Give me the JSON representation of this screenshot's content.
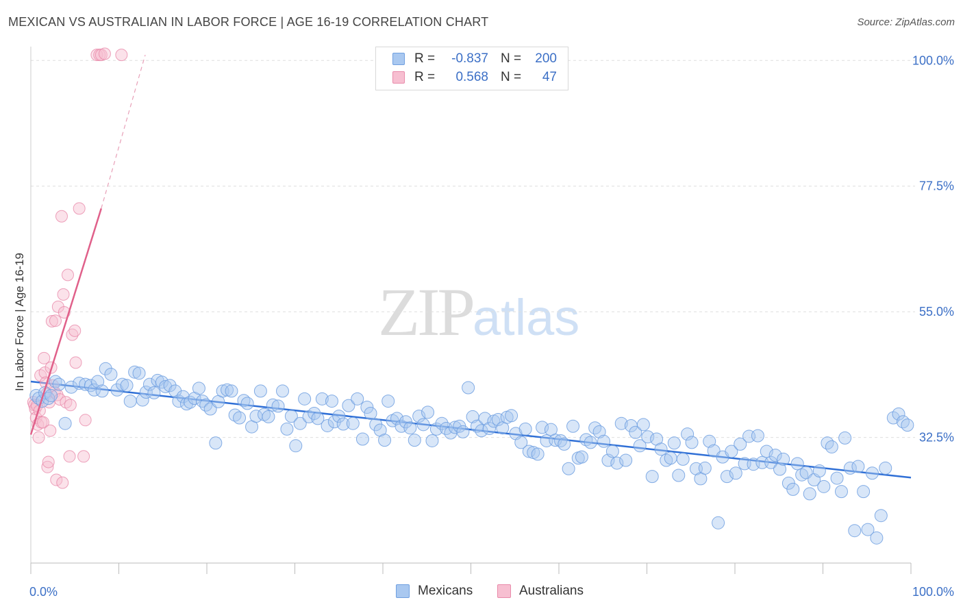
{
  "header": {
    "title": "MEXICAN VS AUSTRALIAN IN LABOR FORCE | AGE 16-19 CORRELATION CHART",
    "source": "Source: ZipAtlas.com"
  },
  "watermark": {
    "zip": "ZIP",
    "atlas": "atlas"
  },
  "legend": {
    "rows": [
      {
        "r_label": "R =",
        "r_value": "-0.837",
        "n_label": "N =",
        "n_value": "200",
        "color": "#a9c8f0",
        "stroke": "#6f9fe0"
      },
      {
        "r_label": "R =",
        "r_value": "0.568",
        "n_label": "N =",
        "n_value": "47",
        "color": "#f7bfd1",
        "stroke": "#e98aaa"
      }
    ]
  },
  "bottom_legend": {
    "items": [
      {
        "label": "Mexicans",
        "color": "#a9c8f0",
        "stroke": "#6f9fe0"
      },
      {
        "label": "Australians",
        "color": "#f7bfd1",
        "stroke": "#e98aaa"
      }
    ]
  },
  "chart_data": {
    "type": "scatter",
    "title": "MEXICAN VS AUSTRALIAN IN LABOR FORCE | AGE 16-19 CORRELATION CHART",
    "xlabel": "",
    "ylabel": "In Labor Force | Age 16-19",
    "xlim": [
      0,
      100
    ],
    "ylim": [
      10,
      102
    ],
    "x_tick_labels": [
      "0.0%",
      "100.0%"
    ],
    "y_ticks": [
      32.5,
      55.0,
      77.5,
      100.0
    ],
    "y_tick_labels": [
      "32.5%",
      "55.0%",
      "77.5%",
      "100.0%"
    ],
    "grid": true,
    "series": [
      {
        "name": "Mexicans",
        "color": "#6f9fe0",
        "fill": "#a9c8f0",
        "trend": {
          "x": [
            0,
            100
          ],
          "y": [
            42.5,
            25.3
          ],
          "style": "solid"
        },
        "points": [
          [
            0.6,
            40
          ],
          [
            0.9,
            39.5
          ],
          [
            1.3,
            39
          ],
          [
            1.6,
            40.5
          ],
          [
            2,
            39.5
          ],
          [
            2.3,
            40
          ],
          [
            2.8,
            42.5
          ],
          [
            3.2,
            42
          ],
          [
            3.9,
            35
          ],
          [
            4.6,
            41.5
          ],
          [
            5.5,
            42.2
          ],
          [
            6.2,
            42
          ],
          [
            6.8,
            41.8
          ],
          [
            7.2,
            41
          ],
          [
            7.6,
            42.5
          ],
          [
            8.1,
            40.8
          ],
          [
            8.5,
            44.8
          ],
          [
            9.1,
            43.8
          ],
          [
            9.8,
            41
          ],
          [
            10.4,
            42
          ],
          [
            10.9,
            41.8
          ],
          [
            11.3,
            39
          ],
          [
            11.8,
            44.2
          ],
          [
            12.3,
            44
          ],
          [
            12.7,
            39.2
          ],
          [
            13.1,
            40.6
          ],
          [
            13.5,
            42
          ],
          [
            14,
            40.5
          ],
          [
            14.4,
            42.7
          ],
          [
            14.9,
            42.4
          ],
          [
            15.3,
            41.6
          ],
          [
            15.8,
            41.8
          ],
          [
            16.4,
            40.8
          ],
          [
            16.8,
            39
          ],
          [
            17.3,
            39.8
          ],
          [
            17.7,
            38.5
          ],
          [
            18.1,
            38.8
          ],
          [
            18.6,
            39.5
          ],
          [
            19.1,
            41.3
          ],
          [
            19.5,
            39
          ],
          [
            19.9,
            38.3
          ],
          [
            20.4,
            37.6
          ],
          [
            21,
            31.5
          ],
          [
            21.3,
            38.9
          ],
          [
            21.8,
            40.8
          ],
          [
            22.3,
            41
          ],
          [
            22.8,
            40.8
          ],
          [
            23.2,
            36.5
          ],
          [
            23.7,
            36
          ],
          [
            24.2,
            39.1
          ],
          [
            24.6,
            38.6
          ],
          [
            25.1,
            34.4
          ],
          [
            25.6,
            36.3
          ],
          [
            26.1,
            40.8
          ],
          [
            26.5,
            36.6
          ],
          [
            27,
            36.2
          ],
          [
            27.5,
            38.3
          ],
          [
            28.1,
            38.1
          ],
          [
            28.6,
            40.8
          ],
          [
            29.1,
            34
          ],
          [
            29.6,
            36.3
          ],
          [
            30.1,
            31
          ],
          [
            30.6,
            35
          ],
          [
            31.1,
            39.4
          ],
          [
            31.6,
            36.2
          ],
          [
            32.2,
            36.8
          ],
          [
            32.6,
            35.9
          ],
          [
            33.1,
            39.4
          ],
          [
            33.7,
            34.6
          ],
          [
            34.2,
            39
          ],
          [
            34.5,
            35.3
          ],
          [
            35,
            36.3
          ],
          [
            35.5,
            34.9
          ],
          [
            36.1,
            38.2
          ],
          [
            36.6,
            35
          ],
          [
            37.1,
            39.4
          ],
          [
            37.7,
            32.2
          ],
          [
            38.2,
            37.9
          ],
          [
            38.6,
            36.8
          ],
          [
            39.2,
            34.8
          ],
          [
            39.7,
            33.8
          ],
          [
            40.2,
            32
          ],
          [
            40.6,
            39
          ],
          [
            41.1,
            35.5
          ],
          [
            41.6,
            35.9
          ],
          [
            42.1,
            34.5
          ],
          [
            42.6,
            35.3
          ],
          [
            43.1,
            34.2
          ],
          [
            43.6,
            32
          ],
          [
            44.1,
            36.3
          ],
          [
            44.6,
            34.8
          ],
          [
            45.1,
            37
          ],
          [
            45.6,
            31.9
          ],
          [
            46.1,
            34
          ],
          [
            46.7,
            35
          ],
          [
            47.2,
            34.1
          ],
          [
            47.7,
            33.3
          ],
          [
            48.2,
            34.3
          ],
          [
            48.7,
            34.5
          ],
          [
            49.1,
            33.5
          ],
          [
            49.7,
            41.4
          ],
          [
            50.2,
            36.2
          ],
          [
            50.7,
            34.5
          ],
          [
            51.2,
            33.7
          ],
          [
            51.6,
            35.9
          ],
          [
            52.1,
            34.1
          ],
          [
            52.6,
            35.4
          ],
          [
            53.1,
            35.7
          ],
          [
            53.6,
            34.2
          ],
          [
            54.1,
            36.1
          ],
          [
            54.6,
            36.4
          ],
          [
            55.1,
            33.2
          ],
          [
            55.7,
            31.6
          ],
          [
            56.2,
            34
          ],
          [
            56.6,
            30
          ],
          [
            57.1,
            29.8
          ],
          [
            57.6,
            29.5
          ],
          [
            58.1,
            34.3
          ],
          [
            58.6,
            31.9
          ],
          [
            59.1,
            33.9
          ],
          [
            59.6,
            32
          ],
          [
            60.2,
            31.9
          ],
          [
            60.6,
            31.3
          ],
          [
            61.1,
            26.9
          ],
          [
            61.6,
            34.5
          ],
          [
            62.2,
            28.8
          ],
          [
            62.6,
            29
          ],
          [
            63.1,
            32.1
          ],
          [
            63.6,
            31.6
          ],
          [
            64.1,
            34.2
          ],
          [
            64.6,
            33.5
          ],
          [
            65.1,
            31.8
          ],
          [
            65.6,
            28.4
          ],
          [
            66.1,
            30
          ],
          [
            66.6,
            27.9
          ],
          [
            67.1,
            35
          ],
          [
            67.6,
            28.4
          ],
          [
            68.2,
            34.6
          ],
          [
            68.7,
            33.4
          ],
          [
            69.2,
            31
          ],
          [
            69.6,
            34.8
          ],
          [
            70.1,
            32.6
          ],
          [
            70.6,
            25.5
          ],
          [
            71.1,
            32.2
          ],
          [
            71.6,
            30.4
          ],
          [
            72.2,
            28.4
          ],
          [
            72.7,
            28.8
          ],
          [
            73.1,
            31.5
          ],
          [
            73.6,
            25.7
          ],
          [
            74.1,
            28.6
          ],
          [
            74.6,
            33.1
          ],
          [
            75.1,
            31.6
          ],
          [
            75.6,
            26.9
          ],
          [
            76.1,
            25.1
          ],
          [
            76.6,
            27
          ],
          [
            77.1,
            31.8
          ],
          [
            77.6,
            30.1
          ],
          [
            78.1,
            17.2
          ],
          [
            78.6,
            29
          ],
          [
            79.1,
            25.5
          ],
          [
            79.6,
            30
          ],
          [
            80.1,
            26.1
          ],
          [
            80.6,
            31.3
          ],
          [
            81.1,
            27.8
          ],
          [
            81.6,
            32.7
          ],
          [
            82.1,
            27.7
          ],
          [
            82.6,
            32.8
          ],
          [
            83.1,
            28
          ],
          [
            83.6,
            30
          ],
          [
            84.1,
            28
          ],
          [
            84.6,
            29.3
          ],
          [
            85.1,
            26.8
          ],
          [
            85.5,
            28.6
          ],
          [
            86.1,
            24.3
          ],
          [
            86.6,
            23.2
          ],
          [
            87.1,
            27.8
          ],
          [
            87.6,
            25.8
          ],
          [
            88.1,
            26.2
          ],
          [
            88.5,
            22.4
          ],
          [
            89,
            24.9
          ],
          [
            89.6,
            26.5
          ],
          [
            90.1,
            23.7
          ],
          [
            90.5,
            31.5
          ],
          [
            91,
            30.8
          ],
          [
            91.6,
            25.2
          ],
          [
            92.1,
            22.8
          ],
          [
            92.5,
            32.4
          ],
          [
            93.1,
            27
          ],
          [
            93.6,
            15.8
          ],
          [
            94,
            27.3
          ],
          [
            94.6,
            22.8
          ],
          [
            95.1,
            16
          ],
          [
            95.6,
            26.1
          ],
          [
            96.1,
            14.5
          ],
          [
            96.6,
            18.5
          ],
          [
            97.1,
            27
          ],
          [
            98,
            36
          ],
          [
            98.6,
            36.7
          ],
          [
            99.1,
            35.3
          ],
          [
            99.6,
            34.7
          ]
        ]
      },
      {
        "name": "Australians",
        "color": "#e98aaa",
        "fill": "#f7bfd1",
        "trend": {
          "x": [
            0,
            8
          ],
          "y": [
            33,
            73.5
          ],
          "style": "solid",
          "extension": {
            "x": [
              8,
              13
            ],
            "y": [
              73.5,
              101
            ]
          }
        },
        "points": [
          [
            0.3,
            38.8
          ],
          [
            0.4,
            38.3
          ],
          [
            0.5,
            37.6
          ],
          [
            0.6,
            36
          ],
          [
            0.7,
            38.2
          ],
          [
            0.8,
            34.8
          ],
          [
            0.9,
            32.5
          ],
          [
            1,
            37.3
          ],
          [
            1.1,
            43.6
          ],
          [
            1.2,
            35.2
          ],
          [
            1.4,
            35.2
          ],
          [
            1.5,
            46.7
          ],
          [
            1.6,
            44.1
          ],
          [
            1.7,
            42.3
          ],
          [
            1.8,
            40.3
          ],
          [
            1.9,
            27.2
          ],
          [
            2,
            28.1
          ],
          [
            2.1,
            38.8
          ],
          [
            2.2,
            33.7
          ],
          [
            2.3,
            45
          ],
          [
            2.4,
            53.3
          ],
          [
            2.5,
            41.8
          ],
          [
            2.7,
            40.6
          ],
          [
            2.8,
            53.4
          ],
          [
            2.9,
            24.9
          ],
          [
            3,
            40.1
          ],
          [
            3.1,
            55.9
          ],
          [
            3.3,
            39.3
          ],
          [
            3.5,
            72.1
          ],
          [
            3.6,
            24.4
          ],
          [
            3.7,
            58.1
          ],
          [
            3.8,
            54.9
          ],
          [
            4,
            38.8
          ],
          [
            4.2,
            61.6
          ],
          [
            4.4,
            29.1
          ],
          [
            4.5,
            38.3
          ],
          [
            4.7,
            50.9
          ],
          [
            5,
            51.6
          ],
          [
            5.1,
            45.9
          ],
          [
            5.5,
            73.5
          ],
          [
            6,
            29.1
          ],
          [
            6.2,
            35.6
          ],
          [
            7.5,
            101
          ],
          [
            7.8,
            101
          ],
          [
            8,
            101
          ],
          [
            8.4,
            101.2
          ],
          [
            10.3,
            101
          ]
        ]
      }
    ]
  }
}
